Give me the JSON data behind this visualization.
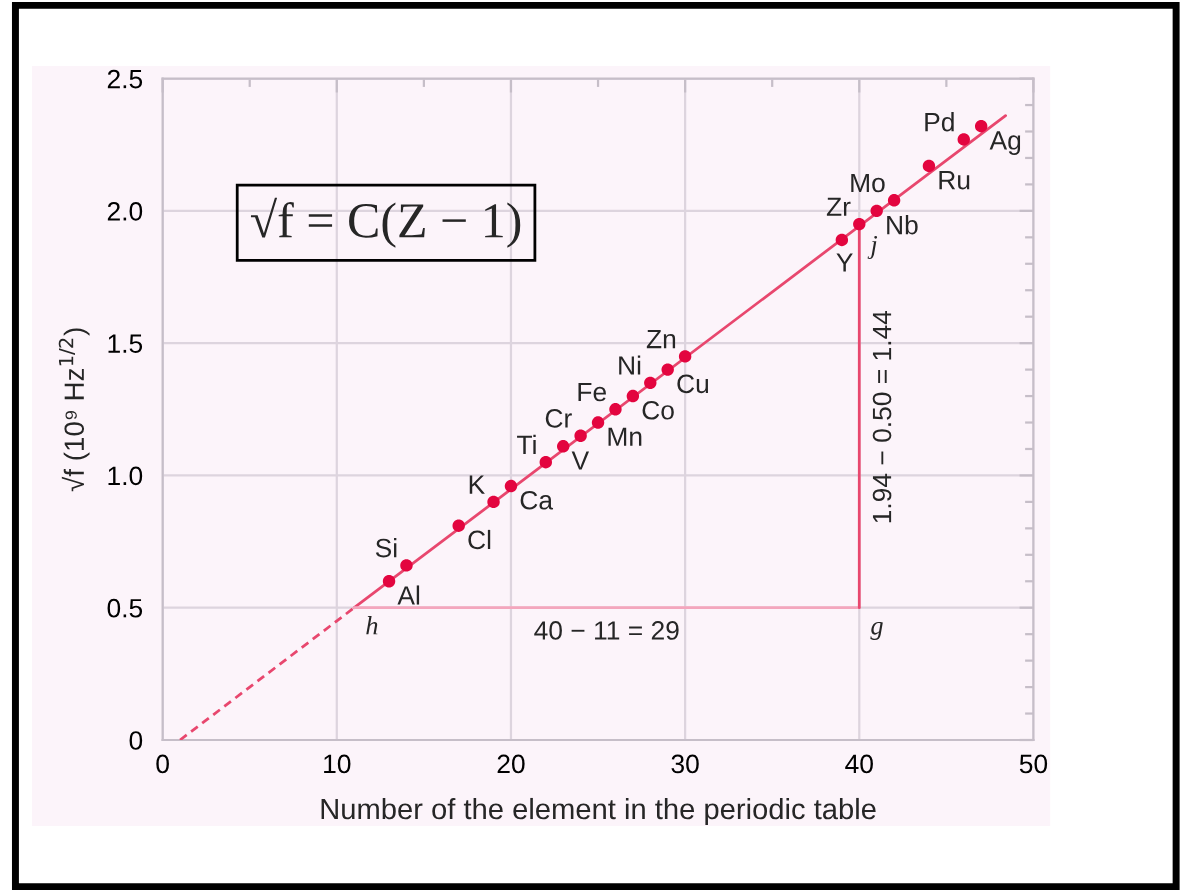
{
  "chart_data": {
    "type": "scatter",
    "xlabel": "Number of the element in the periodic table",
    "ylabel": "√f (10⁹ Hz$^{1/2}$)",
    "xlim": [
      0,
      50
    ],
    "xticks": [
      0,
      10,
      20,
      30,
      40,
      50,
      {
        "value": 5,
        "label": null
      },
      {
        "value": 15,
        "label": null
      },
      {
        "value": 25,
        "label": null
      },
      {
        "value": 35,
        "label": null
      },
      {
        "value": 45,
        "label": null
      }
    ],
    "ylim": [
      0,
      2.5
    ],
    "yticks": [
      0,
      0.5,
      {
        "value": 1,
        "label": "1.0"
      },
      1.5,
      {
        "value": 2,
        "label": "2.0"
      },
      2.5,
      {
        "value": 0.1,
        "label": null
      },
      {
        "value": 0.2,
        "label": null
      },
      {
        "value": 0.3,
        "label": null
      },
      {
        "value": 0.4,
        "label": null
      },
      {
        "value": 0.6,
        "label": null
      },
      {
        "value": 0.7,
        "label": null
      },
      {
        "value": 0.8,
        "label": null
      },
      {
        "value": 0.9,
        "label": null
      },
      {
        "value": 1.1,
        "label": null
      },
      {
        "value": 1.2,
        "label": null
      },
      {
        "value": 1.3,
        "label": null
      },
      {
        "value": 1.4,
        "label": null
      },
      {
        "value": 1.6,
        "label": null
      },
      {
        "value": 1.7,
        "label": null
      },
      {
        "value": 1.8,
        "label": null
      },
      {
        "value": 1.9,
        "label": null
      },
      {
        "value": 2.1,
        "label": null
      },
      {
        "value": 2.2,
        "label": null
      },
      {
        "value": 2.3,
        "label": null
      },
      {
        "value": 2.4,
        "label": null
      }
    ],
    "grid": true,
    "annotations": [
      "√f = C(Z − 1)"
    ],
    "series": [
      {
        "type": "line",
        "color": "#e8476e",
        "line_style": "dashed",
        "x": [
          1,
          11
        ],
        "values": [
          0,
          0.5
        ]
      },
      {
        "type": "line",
        "color": "#e8476e",
        "line_style": "solid",
        "x": [
          11,
          48.4
        ],
        "values": [
          0.5,
          2.36
        ]
      },
      {
        "type": "line",
        "name": "40 − 11 = 29",
        "color": "#f4a6bd",
        "line_style": "solid",
        "x": [
          11,
          40
        ],
        "values": [
          0.5,
          0.5
        ],
        "value_labels": [
          "h",
          "g"
        ]
      },
      {
        "type": "line",
        "name": "1.94 − 0.50 = 1.44",
        "color": "#e8476e",
        "line_style": "solid",
        "x": [
          40,
          40
        ],
        "values": [
          0.5,
          1.94
        ],
        "value_labels": [
          null,
          "j"
        ]
      },
      {
        "color": "#e3053f",
        "marker": "circle",
        "x": [
          13,
          14,
          17,
          19,
          20,
          22,
          23,
          24,
          25,
          26,
          27,
          28,
          29,
          30,
          39,
          40,
          41,
          42,
          44,
          46,
          47
        ],
        "values": [
          0.6,
          0.66,
          0.81,
          0.9,
          0.96,
          1.05,
          1.11,
          1.15,
          1.2,
          1.25,
          1.3,
          1.35,
          1.4,
          1.45,
          1.89,
          1.95,
          2.0,
          2.04,
          2.17,
          2.27,
          2.32
        ],
        "value_labels": [
          "Al",
          "Si",
          "Cl",
          "K",
          "Ca",
          "Ti",
          "V",
          "Cr",
          "Mn",
          "Fe",
          "Co",
          "Ni",
          "Cu",
          "Zn",
          "Y",
          "Zr",
          "Nb",
          "Mo",
          "Ru",
          "Pd",
          "Ag"
        ]
      }
    ]
  }
}
